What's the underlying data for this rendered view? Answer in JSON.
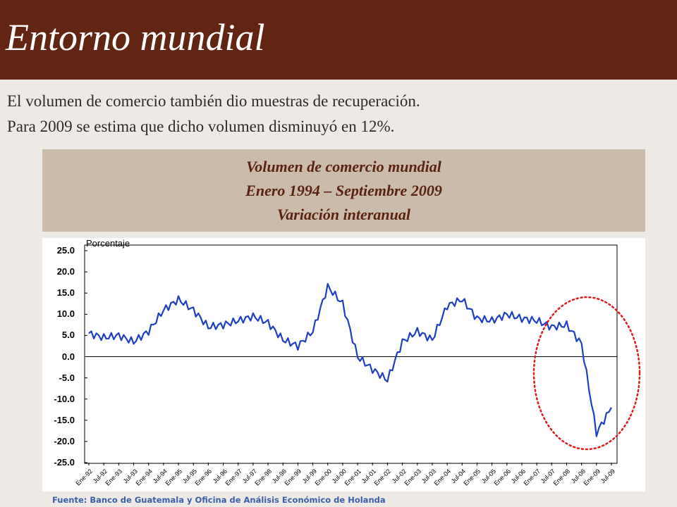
{
  "slide": {
    "title": "Entorno mundial",
    "line1": "El volumen de comercio también dio muestras de recuperación.",
    "line2": "Para 2009 se estima que dicho volumen disminuyó en 12%.",
    "source": "Fuente:  Banco de Guatemala y Oficina de Análisis Económico de Holanda"
  },
  "colors": {
    "title_bar": "#622413",
    "header_box": "#cbbbab",
    "header_text": "#5a2210",
    "series_line": "#1f3fc4",
    "highlight_ellipse": "#e01919",
    "source_text": "#3a5fa8"
  },
  "chart_data": {
    "type": "line",
    "title": "Volumen de comercio mundial",
    "subtitle_lines": [
      "Enero 1994 – Septiembre 2009",
      "Variación interanual"
    ],
    "ylabel": "Porcentaje",
    "ylim": [
      -25,
      25
    ],
    "yticks": [
      "25.0",
      "20.0",
      "15.0",
      "10.0",
      "5.0",
      "0.0",
      "-5.0",
      "-10.0",
      "-15.0",
      "-20.0",
      "-25.0"
    ],
    "xticks": [
      "Ene-92",
      "Jul-92",
      "Ene-93",
      "Jul-93",
      "Ene-94",
      "Jul-94",
      "Ene-95",
      "Jul-95",
      "Ene-96",
      "Jul-96",
      "Ene-97",
      "Jul-97",
      "Ene-98",
      "Jul-98",
      "Ene-99",
      "Jul-99",
      "Ene-00",
      "Jul-00",
      "Ene-01",
      "Jul-01",
      "Ene-02",
      "Jul-02",
      "Ene-03",
      "Jul-03",
      "Ene-04",
      "Jul-04",
      "Ene-05",
      "Jul-05",
      "Ene-06",
      "Jul-06",
      "Ene-07",
      "Jul-07",
      "Ene-08",
      "Jul-08",
      "Ene-09",
      "Jul-09"
    ],
    "zero_line": true,
    "grid": false,
    "highlight": "red dotted ellipse around 2008–2009 decline",
    "series": [
      {
        "x": [
          "Ene-92",
          "Jul-92",
          "Ene-93",
          "Jul-93",
          "Ene-94",
          "Jul-94",
          "Ene-95",
          "Jul-95",
          "Ene-96",
          "Jul-96",
          "Ene-97",
          "Jul-97",
          "Ene-98",
          "Jul-98",
          "Ene-99",
          "Jul-99",
          "Ene-00",
          "Jul-00",
          "Ene-01",
          "Jul-01",
          "Ene-02",
          "Jul-02",
          "Ene-03",
          "Jul-03",
          "Ene-04",
          "Jul-04",
          "Ene-05",
          "Jul-05",
          "Ene-06",
          "Jul-06",
          "Ene-07",
          "Jul-07",
          "Ene-08",
          "Jul-08",
          "Ene-09",
          "Jul-09"
        ],
        "values": [
          5.5,
          4.5,
          5.0,
          3.5,
          6.0,
          11.0,
          13.5,
          11.0,
          7.0,
          7.5,
          8.5,
          9.5,
          8.0,
          4.0,
          2.5,
          6.0,
          16.5,
          12.5,
          0.0,
          -3.0,
          -5.5,
          3.5,
          6.0,
          4.0,
          12.0,
          13.5,
          9.0,
          8.5,
          10.0,
          9.0,
          8.5,
          7.0,
          7.5,
          3.0,
          -18.0,
          -12.0
        ]
      }
    ]
  }
}
